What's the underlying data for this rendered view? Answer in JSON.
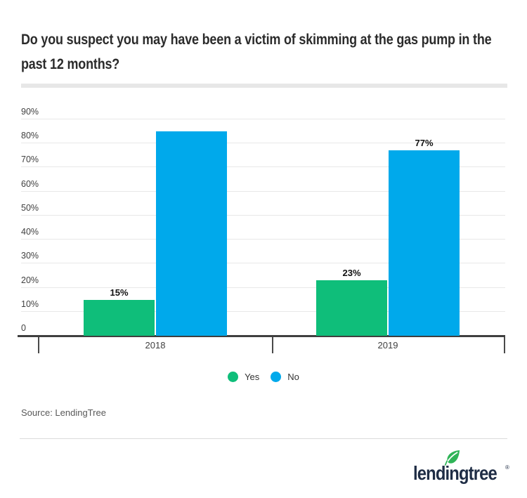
{
  "header": {
    "title_lines": [
      "Do you suspect you may have been a victim of skimming at the gas pump in the",
      "past 12 months?"
    ]
  },
  "chart_data": {
    "type": "bar",
    "title": "Do you suspect you may have been a victim of skimming at the gas pump in the past 12 months?",
    "categories": [
      "2018",
      "2019"
    ],
    "series": [
      {
        "name": "Yes",
        "color": "#0fbe7a",
        "values": [
          15,
          23
        ],
        "data_labels": [
          "15%",
          "23%"
        ]
      },
      {
        "name": "No",
        "color": "#00a9eb",
        "values": [
          85,
          77
        ],
        "data_labels": [
          "",
          "77%"
        ]
      }
    ],
    "ylim": [
      0,
      90
    ],
    "yticks": [
      {
        "v": 90,
        "label": "90%"
      },
      {
        "v": 80,
        "label": "80%"
      },
      {
        "v": 70,
        "label": "70%"
      },
      {
        "v": 60,
        "label": "60%"
      },
      {
        "v": 50,
        "label": "50%"
      },
      {
        "v": 40,
        "label": "40%"
      },
      {
        "v": 30,
        "label": "30%"
      },
      {
        "v": 20,
        "label": "20%"
      },
      {
        "v": 10,
        "label": "10%"
      },
      {
        "v": 0,
        "label": "0"
      }
    ],
    "grid": true,
    "legend_position": "bottom"
  },
  "footer": {
    "source": "Source: LendingTree",
    "logo_text": "lendingtree",
    "logo_registered": "®"
  },
  "colors": {
    "yes_green": "#0fbe7a",
    "no_blue": "#00a9eb",
    "logo_navy": "#1f2d45",
    "leaf_green": "#2fb457",
    "title_underline_gray": "#e7e7e7"
  }
}
